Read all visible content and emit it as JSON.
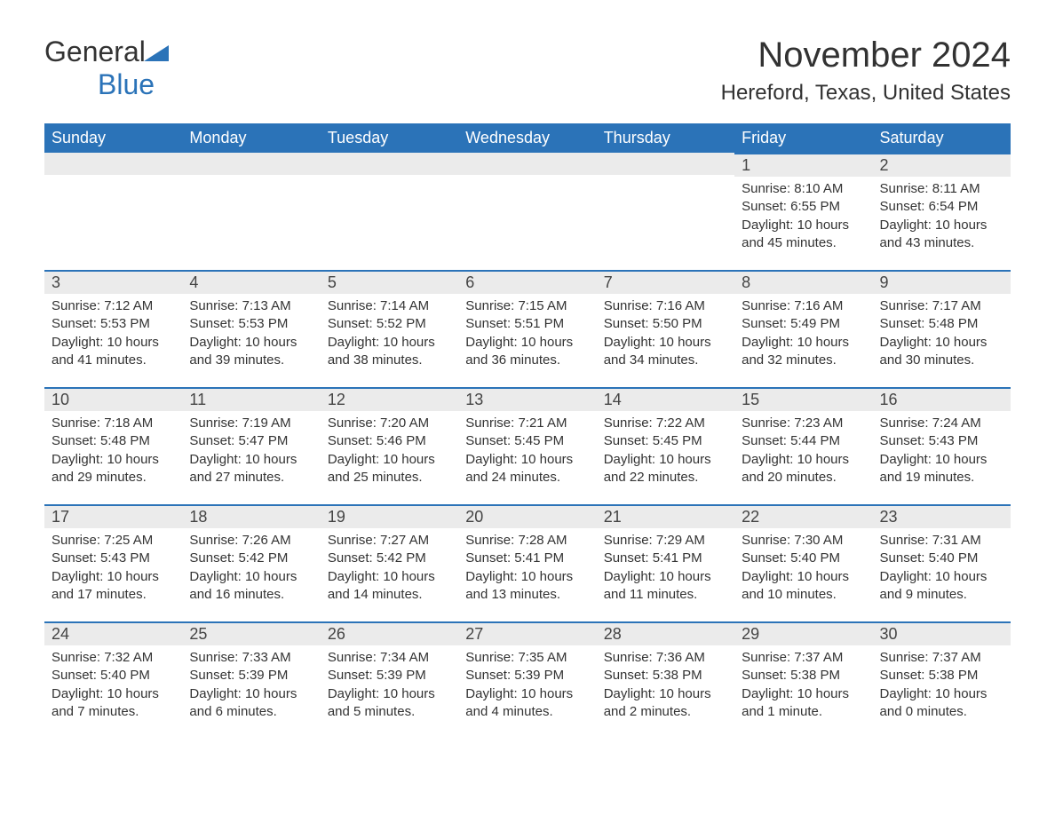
{
  "logo": {
    "word1": "General",
    "word2": "Blue"
  },
  "title": "November 2024",
  "location": "Hereford, Texas, United States",
  "colors": {
    "accent": "#2b73b8",
    "header_bg": "#2b73b8",
    "header_text": "#ffffff",
    "daynum_bg": "#ebebeb",
    "text": "#333333",
    "page_bg": "#ffffff"
  },
  "typography": {
    "title_fontsize": 40,
    "location_fontsize": 24,
    "header_fontsize": 18,
    "daynum_fontsize": 18,
    "body_fontsize": 15
  },
  "weekdays": [
    "Sunday",
    "Monday",
    "Tuesday",
    "Wednesday",
    "Thursday",
    "Friday",
    "Saturday"
  ],
  "weeks": [
    [
      null,
      null,
      null,
      null,
      null,
      {
        "day": "1",
        "sunrise": "Sunrise: 8:10 AM",
        "sunset": "Sunset: 6:55 PM",
        "daylight": "Daylight: 10 hours and 45 minutes."
      },
      {
        "day": "2",
        "sunrise": "Sunrise: 8:11 AM",
        "sunset": "Sunset: 6:54 PM",
        "daylight": "Daylight: 10 hours and 43 minutes."
      }
    ],
    [
      {
        "day": "3",
        "sunrise": "Sunrise: 7:12 AM",
        "sunset": "Sunset: 5:53 PM",
        "daylight": "Daylight: 10 hours and 41 minutes."
      },
      {
        "day": "4",
        "sunrise": "Sunrise: 7:13 AM",
        "sunset": "Sunset: 5:53 PM",
        "daylight": "Daylight: 10 hours and 39 minutes."
      },
      {
        "day": "5",
        "sunrise": "Sunrise: 7:14 AM",
        "sunset": "Sunset: 5:52 PM",
        "daylight": "Daylight: 10 hours and 38 minutes."
      },
      {
        "day": "6",
        "sunrise": "Sunrise: 7:15 AM",
        "sunset": "Sunset: 5:51 PM",
        "daylight": "Daylight: 10 hours and 36 minutes."
      },
      {
        "day": "7",
        "sunrise": "Sunrise: 7:16 AM",
        "sunset": "Sunset: 5:50 PM",
        "daylight": "Daylight: 10 hours and 34 minutes."
      },
      {
        "day": "8",
        "sunrise": "Sunrise: 7:16 AM",
        "sunset": "Sunset: 5:49 PM",
        "daylight": "Daylight: 10 hours and 32 minutes."
      },
      {
        "day": "9",
        "sunrise": "Sunrise: 7:17 AM",
        "sunset": "Sunset: 5:48 PM",
        "daylight": "Daylight: 10 hours and 30 minutes."
      }
    ],
    [
      {
        "day": "10",
        "sunrise": "Sunrise: 7:18 AM",
        "sunset": "Sunset: 5:48 PM",
        "daylight": "Daylight: 10 hours and 29 minutes."
      },
      {
        "day": "11",
        "sunrise": "Sunrise: 7:19 AM",
        "sunset": "Sunset: 5:47 PM",
        "daylight": "Daylight: 10 hours and 27 minutes."
      },
      {
        "day": "12",
        "sunrise": "Sunrise: 7:20 AM",
        "sunset": "Sunset: 5:46 PM",
        "daylight": "Daylight: 10 hours and 25 minutes."
      },
      {
        "day": "13",
        "sunrise": "Sunrise: 7:21 AM",
        "sunset": "Sunset: 5:45 PM",
        "daylight": "Daylight: 10 hours and 24 minutes."
      },
      {
        "day": "14",
        "sunrise": "Sunrise: 7:22 AM",
        "sunset": "Sunset: 5:45 PM",
        "daylight": "Daylight: 10 hours and 22 minutes."
      },
      {
        "day": "15",
        "sunrise": "Sunrise: 7:23 AM",
        "sunset": "Sunset: 5:44 PM",
        "daylight": "Daylight: 10 hours and 20 minutes."
      },
      {
        "day": "16",
        "sunrise": "Sunrise: 7:24 AM",
        "sunset": "Sunset: 5:43 PM",
        "daylight": "Daylight: 10 hours and 19 minutes."
      }
    ],
    [
      {
        "day": "17",
        "sunrise": "Sunrise: 7:25 AM",
        "sunset": "Sunset: 5:43 PM",
        "daylight": "Daylight: 10 hours and 17 minutes."
      },
      {
        "day": "18",
        "sunrise": "Sunrise: 7:26 AM",
        "sunset": "Sunset: 5:42 PM",
        "daylight": "Daylight: 10 hours and 16 minutes."
      },
      {
        "day": "19",
        "sunrise": "Sunrise: 7:27 AM",
        "sunset": "Sunset: 5:42 PM",
        "daylight": "Daylight: 10 hours and 14 minutes."
      },
      {
        "day": "20",
        "sunrise": "Sunrise: 7:28 AM",
        "sunset": "Sunset: 5:41 PM",
        "daylight": "Daylight: 10 hours and 13 minutes."
      },
      {
        "day": "21",
        "sunrise": "Sunrise: 7:29 AM",
        "sunset": "Sunset: 5:41 PM",
        "daylight": "Daylight: 10 hours and 11 minutes."
      },
      {
        "day": "22",
        "sunrise": "Sunrise: 7:30 AM",
        "sunset": "Sunset: 5:40 PM",
        "daylight": "Daylight: 10 hours and 10 minutes."
      },
      {
        "day": "23",
        "sunrise": "Sunrise: 7:31 AM",
        "sunset": "Sunset: 5:40 PM",
        "daylight": "Daylight: 10 hours and 9 minutes."
      }
    ],
    [
      {
        "day": "24",
        "sunrise": "Sunrise: 7:32 AM",
        "sunset": "Sunset: 5:40 PM",
        "daylight": "Daylight: 10 hours and 7 minutes."
      },
      {
        "day": "25",
        "sunrise": "Sunrise: 7:33 AM",
        "sunset": "Sunset: 5:39 PM",
        "daylight": "Daylight: 10 hours and 6 minutes."
      },
      {
        "day": "26",
        "sunrise": "Sunrise: 7:34 AM",
        "sunset": "Sunset: 5:39 PM",
        "daylight": "Daylight: 10 hours and 5 minutes."
      },
      {
        "day": "27",
        "sunrise": "Sunrise: 7:35 AM",
        "sunset": "Sunset: 5:39 PM",
        "daylight": "Daylight: 10 hours and 4 minutes."
      },
      {
        "day": "28",
        "sunrise": "Sunrise: 7:36 AM",
        "sunset": "Sunset: 5:38 PM",
        "daylight": "Daylight: 10 hours and 2 minutes."
      },
      {
        "day": "29",
        "sunrise": "Sunrise: 7:37 AM",
        "sunset": "Sunset: 5:38 PM",
        "daylight": "Daylight: 10 hours and 1 minute."
      },
      {
        "day": "30",
        "sunrise": "Sunrise: 7:37 AM",
        "sunset": "Sunset: 5:38 PM",
        "daylight": "Daylight: 10 hours and 0 minutes."
      }
    ]
  ]
}
